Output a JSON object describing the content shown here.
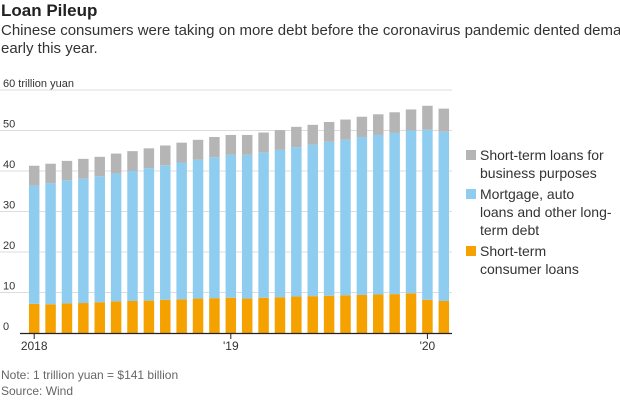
{
  "title": "Loan Pileup",
  "subtitle_lines": [
    "Chinese consumers were taking on more debt before the coronavirus pandemic dented demand",
    "early this year."
  ],
  "note": "Note: 1 trillion yuan = $141 billion",
  "source": "Source: Wind",
  "colors": {
    "short_term_business": "#b5b5b5",
    "mortgage_long_term": "#8ecdf0",
    "short_term_consumer": "#f5a100",
    "axis": "#222222",
    "grid": "#dddddd",
    "tick_text": "#333333"
  },
  "chart_data": {
    "type": "bar",
    "stacked": true,
    "ylabel": "60 trillion yuan",
    "ylim": [
      0,
      60
    ],
    "y_ticks": [
      0,
      10,
      20,
      30,
      40,
      50,
      60
    ],
    "y_tick_labels": [
      "0",
      "10",
      "20",
      "30",
      "40",
      "50",
      "60 trillion yuan"
    ],
    "grid": true,
    "legend_position": "right",
    "x_tick_labels": [
      {
        "index": 0,
        "label": "2018"
      },
      {
        "index": 12,
        "label": "'19"
      },
      {
        "index": 24,
        "label": "'20"
      }
    ],
    "categories": [
      "2018-01",
      "2018-02",
      "2018-03",
      "2018-04",
      "2018-05",
      "2018-06",
      "2018-07",
      "2018-08",
      "2018-09",
      "2018-10",
      "2018-11",
      "2018-12",
      "2019-01",
      "2019-02",
      "2019-03",
      "2019-04",
      "2019-05",
      "2019-06",
      "2019-07",
      "2019-08",
      "2019-09",
      "2019-10",
      "2019-11",
      "2019-12",
      "2020-01",
      "2020-02"
    ],
    "series": [
      {
        "name": "Short-term consumer loans",
        "color_key": "short_term_consumer",
        "values": [
          7.2,
          7.1,
          7.3,
          7.4,
          7.6,
          7.8,
          7.9,
          8.0,
          8.2,
          8.3,
          8.5,
          8.6,
          8.7,
          8.5,
          8.7,
          8.8,
          9.0,
          9.1,
          9.2,
          9.3,
          9.4,
          9.5,
          9.6,
          9.8,
          8.2,
          7.9
        ]
      },
      {
        "name": "Mortgage, auto loans and other long-term debt",
        "color_key": "mortgage_long_term",
        "values": [
          29.2,
          29.9,
          30.4,
          30.7,
          31.1,
          31.6,
          32.1,
          32.7,
          33.2,
          33.8,
          34.3,
          34.8,
          35.3,
          35.5,
          35.9,
          36.4,
          36.9,
          37.4,
          38.0,
          38.4,
          39.0,
          39.4,
          39.8,
          40.2,
          42.0,
          41.8
        ]
      },
      {
        "name": "Short-term loans for business purposes",
        "color_key": "short_term_business",
        "values": [
          4.9,
          4.8,
          4.8,
          4.9,
          4.8,
          4.9,
          4.9,
          4.9,
          4.9,
          4.9,
          4.9,
          5.0,
          4.9,
          4.9,
          4.9,
          4.9,
          5.0,
          4.9,
          4.9,
          5.0,
          5.0,
          5.1,
          5.1,
          5.2,
          5.9,
          5.7
        ]
      }
    ],
    "legend": [
      {
        "series_index": 2,
        "label": "Short-term loans for\nbusiness purposes"
      },
      {
        "series_index": 1,
        "label": "Mortgage, auto\nloans and other long-\nterm debt"
      },
      {
        "series_index": 0,
        "label": "Short-term\nconsumer loans"
      }
    ]
  }
}
